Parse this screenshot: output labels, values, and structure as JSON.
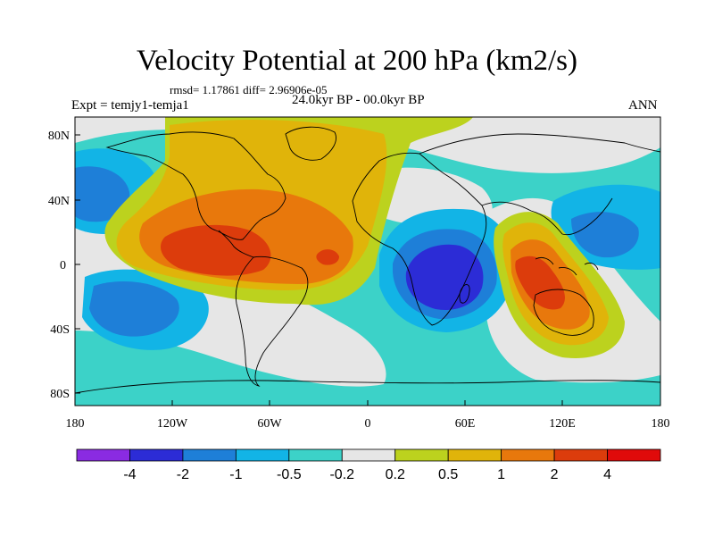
{
  "figure": {
    "title": "Velocity Potential at 200 hPa (km2/s)",
    "stats_line": "rmsd= 1.17861 diff= 2.96906e-05",
    "experiment": "Expt = temjy1-temja1",
    "period": "24.0kyr BP - 00.0kyr BP",
    "season": "ANN"
  },
  "axes": {
    "lat_ticks": [
      "80N",
      "40N",
      "0",
      "40S",
      "80S"
    ],
    "lon_ticks": [
      "180",
      "120W",
      "60W",
      "0",
      "60E",
      "120E",
      "180"
    ]
  },
  "colorbar": {
    "labels": [
      "-4",
      "-2",
      "-1",
      "-0.5",
      "-0.2",
      "0.2",
      "0.5",
      "1",
      "2",
      "4"
    ],
    "colors": [
      "#8a2be2",
      "#2c2cd6",
      "#1e7fd8",
      "#12b4e6",
      "#3cd2c8",
      "#e6e6e6",
      "#bcd21e",
      "#e0b40a",
      "#e8780c",
      "#dc3c0c",
      "#e00a0a"
    ]
  },
  "map_colors": {
    "ocean_base": "#3cd2c8",
    "neutral": "#e6e6e6",
    "pos_1": "#bcd21e",
    "pos_2": "#e0b40a",
    "pos_3": "#e8780c",
    "pos_4": "#dc3c0c",
    "neg_1": "#12b4e6",
    "neg_2": "#1e7fd8",
    "neg_3": "#2c2cd6"
  }
}
